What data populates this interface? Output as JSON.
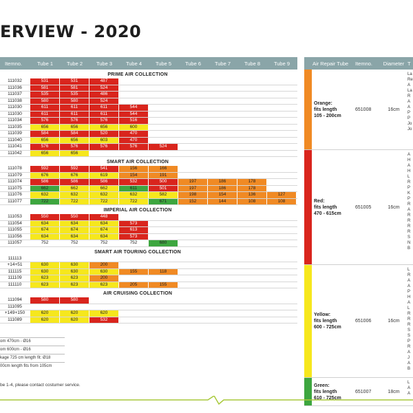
{
  "title": "ERVIEW - 2020",
  "table": {
    "headers": [
      "Itemno.",
      "Tube 1",
      "Tube 2",
      "Tube 3",
      "Tube 4",
      "Tube 5",
      "Tube 6",
      "Tube 7",
      "Tube 8",
      "Tube 9"
    ],
    "sections": [
      {
        "name": "PRIME AIR COLLECTION",
        "rows": [
          {
            "item": "111032",
            "cells": [
              [
                "531",
                "r"
              ],
              [
                "531",
                "r"
              ],
              [
                "487",
                "r"
              ]
            ]
          },
          {
            "item": "111036",
            "cells": [
              [
                "581",
                "r"
              ],
              [
                "581",
                "r"
              ],
              [
                "524",
                "r"
              ]
            ]
          },
          {
            "item": "111037",
            "cells": [
              [
                "535",
                "r"
              ],
              [
                "535",
                "r"
              ],
              [
                "486",
                "r"
              ]
            ]
          },
          {
            "item": "111038",
            "cells": [
              [
                "580",
                "r"
              ],
              [
                "580",
                "r"
              ],
              [
                "524",
                "r"
              ]
            ]
          },
          {
            "item": "111030",
            "cells": [
              [
                "611",
                "r"
              ],
              [
                "611",
                "r"
              ],
              [
                "611",
                "r"
              ],
              [
                "544",
                "r"
              ]
            ]
          },
          {
            "item": "111030",
            "cells": [
              [
                "611",
                "r"
              ],
              [
                "611",
                "r"
              ],
              [
                "611",
                "r"
              ],
              [
                "544",
                "r"
              ]
            ]
          },
          {
            "item": "111034",
            "cells": [
              [
                "576",
                "r"
              ],
              [
                "576",
                "r"
              ],
              [
                "576",
                "r"
              ],
              [
                "516",
                "r"
              ]
            ]
          },
          {
            "item": "111035",
            "cells": [
              [
                "656",
                "y"
              ],
              [
                "656",
                "y"
              ],
              [
                "656",
                "y"
              ],
              [
                "600",
                "y"
              ]
            ]
          },
          {
            "item": "111039",
            "cells": [
              [
                "584",
                "r"
              ],
              [
                "584",
                "r"
              ],
              [
                "520",
                "r"
              ],
              [
                "470",
                "r"
              ]
            ]
          },
          {
            "item": "111040",
            "cells": [
              [
                "656",
                "y"
              ],
              [
                "656",
                "y"
              ],
              [
                "603",
                "y"
              ],
              [
                "470",
                "r"
              ]
            ]
          },
          {
            "item": "111041",
            "cells": [
              [
                "576",
                "r"
              ],
              [
                "576",
                "r"
              ],
              [
                "576",
                "r"
              ],
              [
                "576",
                "r"
              ],
              [
                "524",
                "r"
              ]
            ]
          },
          {
            "item": "111042",
            "cells": [
              [
                "656",
                "y"
              ],
              [
                "656",
                "y"
              ]
            ]
          }
        ]
      },
      {
        "name": "SMART AIR COLLECTION",
        "rows": [
          {
            "item": "111078",
            "cells": [
              [
                "592",
                "r"
              ],
              [
                "592",
                "r"
              ],
              [
                "541",
                "r"
              ],
              [
                "156",
                "o"
              ],
              [
                "166",
                "o"
              ]
            ]
          },
          {
            "item": "111079",
            "cells": [
              [
                "676",
                "y"
              ],
              [
                "676",
                "y"
              ],
              [
                "619",
                "y"
              ],
              [
                "154",
                "o"
              ],
              [
                "191",
                "o"
              ]
            ]
          },
          {
            "item": "111074",
            "cells": [
              [
                "586",
                "r"
              ],
              [
                "586",
                "r"
              ],
              [
                "586",
                "r"
              ],
              [
                "532",
                "r"
              ],
              [
                "500",
                "r"
              ],
              [
                "197",
                "o"
              ],
              [
                "186",
                "o"
              ],
              [
                "178",
                "o"
              ]
            ]
          },
          {
            "item": "111075",
            "cells": [
              [
                "662",
                "g"
              ],
              [
                "662",
                "y"
              ],
              [
                "662",
                "y"
              ],
              [
                "611",
                "g"
              ],
              [
                "501",
                "r"
              ],
              [
                "197",
                "o"
              ],
              [
                "186",
                "o"
              ],
              [
                "178",
                "o"
              ]
            ]
          },
          {
            "item": "111076",
            "cells": [
              [
                "632",
                "y"
              ],
              [
                "632",
                "y"
              ],
              [
                "632",
                "y"
              ],
              [
                "632",
                "y"
              ],
              [
                "582",
                "y"
              ],
              [
                "198",
                "o"
              ],
              [
                "154",
                "o"
              ],
              [
                "136",
                "o"
              ],
              [
                "127",
                "o"
              ]
            ]
          },
          {
            "item": "111077",
            "cells": [
              [
                "722",
                "g"
              ],
              [
                "722",
                "y"
              ],
              [
                "722",
                "y"
              ],
              [
                "722",
                "y"
              ],
              [
                "671",
                "g"
              ],
              [
                "152",
                "o"
              ],
              [
                "144",
                "o"
              ],
              [
                "108",
                "o"
              ],
              [
                "108",
                "o"
              ]
            ]
          }
        ]
      },
      {
        "name": "IMPERIAL AIR COLLECTION",
        "rows": [
          {
            "item": "111053",
            "cells": [
              [
                "550",
                "r"
              ],
              [
                "550",
                "r"
              ],
              [
                "448",
                "r"
              ]
            ]
          },
          {
            "item": "111054",
            "cells": [
              [
                "634",
                "y"
              ],
              [
                "634",
                "y"
              ],
              [
                "634",
                "y"
              ],
              [
                "573",
                "r"
              ]
            ]
          },
          {
            "item": "111055",
            "cells": [
              [
                "674",
                "y"
              ],
              [
                "674",
                "y"
              ],
              [
                "674",
                "y"
              ],
              [
                "613",
                "r"
              ]
            ]
          },
          {
            "item": "111056",
            "cells": [
              [
                "634",
                "y"
              ],
              [
                "634",
                "y"
              ],
              [
                "634",
                "y"
              ],
              [
                "573",
                "r"
              ]
            ]
          },
          {
            "item": "111057",
            "cells": [
              [
                "752",
                "w"
              ],
              [
                "752",
                "w"
              ],
              [
                "752",
                "w"
              ],
              [
                "752",
                "w"
              ],
              [
                "680",
                "g"
              ]
            ]
          }
        ]
      },
      {
        "name": "SMART AIR TOURING COLLECTION",
        "rows": [
          {
            "item": "111113",
            "cells": []
          },
          {
            "item": "+14+51",
            "cells": [
              [
                "630",
                "y"
              ],
              [
                "630",
                "y"
              ],
              [
                "200",
                "o"
              ]
            ]
          },
          {
            "item": "111115",
            "cells": [
              [
                "630",
                "y"
              ],
              [
                "630",
                "y"
              ],
              [
                "630",
                "y"
              ],
              [
                "155",
                "o"
              ],
              [
                "118",
                "o"
              ]
            ]
          },
          {
            "item": "111109",
            "cells": [
              [
                "623",
                "y"
              ],
              [
                "623",
                "y"
              ],
              [
                "200",
                "o"
              ]
            ]
          },
          {
            "item": "111110",
            "cells": [
              [
                "623",
                "y"
              ],
              [
                "623",
                "y"
              ],
              [
                "623",
                "y"
              ],
              [
                "205",
                "o"
              ],
              [
                "155",
                "o"
              ]
            ]
          }
        ]
      },
      {
        "name": "AIR CRUISING COLLECTION",
        "rows": [
          {
            "item": "111094",
            "cells": [
              [
                "580",
                "r"
              ],
              [
                "580",
                "r"
              ]
            ]
          },
          {
            "item": "111095",
            "cells": []
          },
          {
            "item": "+149+150",
            "cells": [
              [
                "620",
                "y"
              ],
              [
                "620",
                "y"
              ],
              [
                "620",
                "y"
              ]
            ]
          },
          {
            "item": "111089",
            "cells": [
              [
                "620",
                "y"
              ],
              [
                "620",
                "y"
              ],
              [
                "532",
                "r"
              ]
            ]
          }
        ]
      }
    ]
  },
  "notes": [
    "om 470cm - Ø16",
    "om 600cm - Ø16",
    "kage 725 cm length fit: Ø18",
    "00cm length fits from 105cm"
  ],
  "contact": "be 1-4, please contact costumer service.",
  "repair": {
    "headers": [
      "Air Repair Tube",
      "Itemno.",
      "Diameter",
      "T"
    ],
    "bands": [
      {
        "label_lines": [
          "Orange:",
          "fits length",
          "105 - 200cm"
        ],
        "item": "651008",
        "diameter": "16cm",
        "color": "#f08a24",
        "height": 116,
        "list": [
          "La",
          "Re",
          "A",
          "La",
          "R",
          "A",
          "A",
          "P",
          "P",
          "Jo",
          "Jo"
        ]
      },
      {
        "label_lines": [
          "Red:",
          "fits length",
          "470 - 615cm"
        ],
        "item": "651005",
        "diameter": "16cm",
        "color": "#d9251d",
        "height": 166,
        "list": [
          "A",
          "H",
          "A",
          "H",
          "L",
          "R",
          "P",
          "K",
          "P",
          "R",
          "A",
          "R",
          "R",
          "R",
          "R",
          "S",
          "N",
          "B"
        ]
      },
      {
        "label_lines": [
          "Yellow:",
          "fits length",
          "600 - 725cm"
        ],
        "item": "651006",
        "diameter": "16cm",
        "color": "#f6e71d",
        "height": 163,
        "list": [
          "L",
          "R",
          "A",
          "A",
          "P",
          "H",
          "A",
          "L",
          "R",
          "R",
          "R",
          "S",
          "S",
          "P",
          "R",
          "A",
          "J",
          "A",
          "B"
        ]
      },
      {
        "label_lines": [
          "Green:",
          "fits length",
          "610 - 725cm"
        ],
        "item": "651007",
        "diameter": "18cm",
        "color": "#3da63f",
        "height": 40,
        "list": [
          "L",
          "A",
          "A"
        ]
      }
    ]
  }
}
